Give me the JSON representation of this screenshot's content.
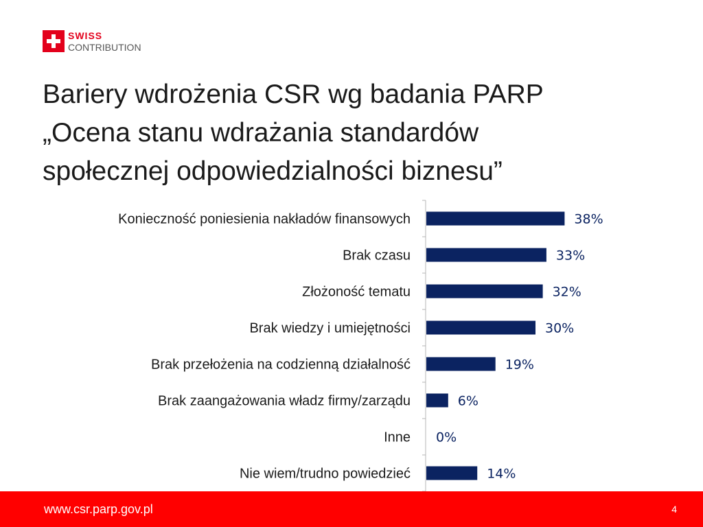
{
  "logo": {
    "word1": "SWISS",
    "word2": "CONTRIBUTION"
  },
  "title": {
    "line1": "Bariery wdrożenia CSR wg badania PARP",
    "line2": "„Ocena stanu wdrażania standardów",
    "line3": "społecznej odpowiedzialności biznesu”"
  },
  "colors": {
    "bar": "#0b2361",
    "label": "#0b2361",
    "accent": "#ff0000",
    "logo_red": "#e3001b"
  },
  "chart_data": {
    "type": "bar",
    "orientation": "horizontal",
    "categories": [
      "Konieczność poniesienia nakładów finansowych",
      "Brak czasu",
      "Złożoność tematu",
      "Brak wiedzy i umiejętności",
      "Brak przełożenia na codzienną działalność",
      "Brak zaangażowania władz firmy/zarządu",
      "Inne",
      "Nie wiem/trudno powiedzieć"
    ],
    "values": [
      38,
      33,
      32,
      30,
      19,
      6,
      0,
      14
    ],
    "value_labels": [
      "38%",
      "33%",
      "32%",
      "30%",
      "19%",
      "6%",
      "0%",
      "14%"
    ],
    "unit": "%",
    "xlim": [
      0,
      100
    ],
    "grid": false,
    "legend": "none"
  },
  "footer": {
    "url": "www.csr.parp.gov.pl",
    "page": "4"
  }
}
